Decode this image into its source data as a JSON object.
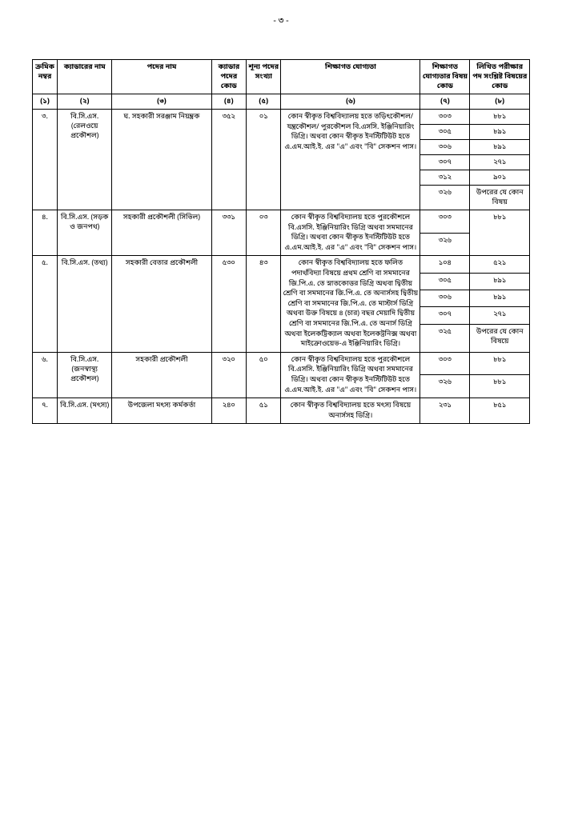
{
  "pageNumber": "- ৩ -",
  "headers": {
    "h1": "ক্রমিক নম্বর",
    "h2": "ক্যাডারের নাম",
    "h3": "পদের নাম",
    "h4": "ক্যাডার পদের কোড",
    "h5": "শূন্য পদের সংখ্যা",
    "h6": "শিক্ষাগত যোগ্যতা",
    "h7": "শিক্ষাগত যোগ্যতার বিষয় কোড",
    "h8": "লিখিত পরীক্ষার পদ সংশ্লিষ্ট বিষয়ের কোড",
    "n1": "(১)",
    "n2": "(২)",
    "n3": "(৩)",
    "n4": "(৪)",
    "n5": "(৫)",
    "n6": "(৬)",
    "n7": "(৭)",
    "n8": "(৮)"
  },
  "row3": {
    "serial": "৩.",
    "cadre": "বি.সি.এস. (রেলওয়ে প্রকৌশল)",
    "post": "ঘ. সহকারী সরঞ্জাম নিয়ন্ত্রক",
    "code": "৩৫২",
    "vacancy": "০১",
    "qual": "কোন স্বীকৃত বিশ্ববিদ্যালয় হতে তড়িৎকৌশল/যন্ত্রকৌশল/ পুরকৌশল বি.এসসি. ইঞ্জিনিয়ারিং ডিগ্রি। অথবা কোন স্বীকৃত ইনস্টিটিউট হতে এ.এম.আই.ই. এর \"এ\" এবং \"বি\" সেকশন পাস।",
    "sub1c": "৩০৩",
    "sub1e": "৮৮১",
    "sub2c": "৩০৫",
    "sub2e": "৮৯১",
    "sub3c": "৩০৬",
    "sub3e": "৮৯১",
    "sub4c": "৩০৭",
    "sub4e": "২৭১",
    "sub5c": "৩১২",
    "sub5e": "৯০১",
    "sub6c": "৩২৬",
    "sub6e": "উপরের যে কোন বিষয়"
  },
  "row4": {
    "serial": "৪.",
    "cadre": "বি.সি.এস. (সড়ক ও জনপথ)",
    "post": "সহকারী প্রকৌশলী (সিভিল)",
    "code": "৩৩১",
    "vacancy": "০৩",
    "qual": "কোন স্বীকৃত বিশ্ববিদ্যালয় হতে পুরকৌশলে বি.এসসি. ইঞ্জিনিয়ারিং ডিগ্রি অথবা সমমানের ডিগ্রি। অথবা কোন স্বীকৃত ইনস্টিটিউট হতে এ.এম.আই.ই. এর \"এ\" এবং \"বি\" সেকশন পাস।",
    "sub1c": "৩০৩",
    "sub1e": "৮৮১",
    "sub2c": "৩২৬"
  },
  "row5": {
    "serial": "৫.",
    "cadre": "বি.সি.এস. (তথ্য)",
    "post": "সহকারী বেতার প্রকৌশলী",
    "code": "৫৩০",
    "vacancy": "৪৩",
    "qual": "কোন স্বীকৃত বিশ্ববিদ্যালয় হতে ফলিত পদার্থবিদ্যা বিষয়ে প্রথম শ্রেণি বা সমমানের জি.পি.এ. তে স্নাতকোত্তর ডিগ্রি অথবা দ্বিতীয় শ্রেণি বা সমমানের জি.পি.এ. তে অনার্সসহ দ্বিতীয় শ্রেণি বা সমমানের জি.পি.এ. তে মাস্টার্স ডিগ্রি অথবা উক্ত বিষয়ে ৪ (চার) বছর মেয়াদি দ্বিতীয় শ্রেণি বা সমমানের  জি.পি.এ. তে অনার্স ডিগ্রি অথবা ইলেকট্রিক্যাল অথবা ইলেকট্রনিক্স অথবা মাইক্রোওয়েভ-এ ইঞ্জিনিয়ারিং ডিগ্রি।",
    "sub1c": "১০৪",
    "sub1e": "৫২১",
    "sub2c": "৩০৫",
    "sub2e": "৮৯১",
    "sub3c": "৩০৬",
    "sub3e": "৮৯১",
    "sub4c": "৩০৭",
    "sub4e": "২৭১",
    "sub5c": "৩২৫",
    "sub5e": "উপরের যে কোন বিষয়ে"
  },
  "row6": {
    "serial": "৬.",
    "cadre": "বি.সি.এস. (জনস্বাস্থ্য প্রকৌশল)",
    "post": "সহকারী প্রকৌশলী",
    "code": "৩২০",
    "vacancy": "৫০",
    "qual": "কোন স্বীকৃত বিশ্ববিদ্যালয় হতে পুরকৌশলে বি.এসসি. ইঞ্জিনিয়ারিং ডিগ্রি অথবা সমমানের ডিগ্রি। অথবা কোন স্বীকৃত ইনস্টিটিউট হতে এ.এম.আই.ই. এর \"এ\" এবং \"বি\" সেকশন পাস।",
    "sub1c": "৩০৩",
    "sub1e": "৮৮১",
    "sub2c": "৩২৬",
    "sub2e": "৮৮১"
  },
  "row7": {
    "serial": "৭.",
    "cadre": "বি.সি.এস. (মৎস্য)",
    "post": "উপজেলা মৎস্য কর্মকর্তা",
    "code": "২৪০",
    "vacancy": "৫১",
    "qual": "কোন স্বীকৃত বিশ্ববিদ্যালয় হতে মৎস্য বিষয়ে অনার্সসহ ডিগ্রি।",
    "sub1c": "২৩১",
    "sub1e": "৮৫১"
  }
}
